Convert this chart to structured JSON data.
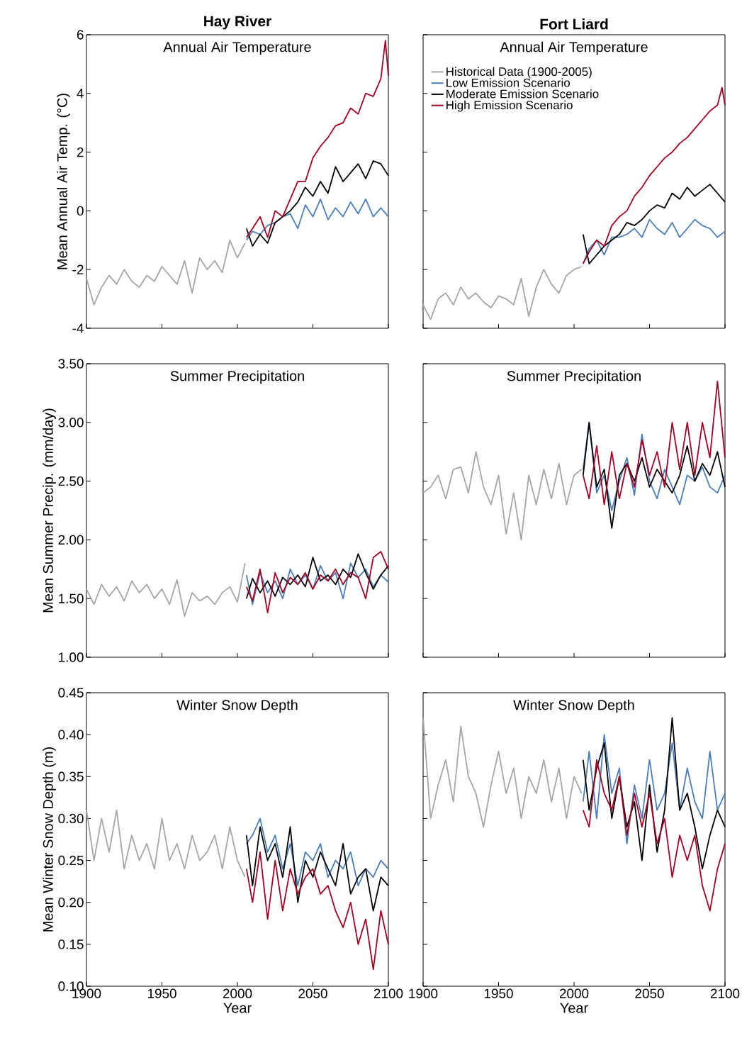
{
  "chart_data": [
    {
      "type": "line",
      "title": "Hay River",
      "subtitle": "Annual Air Temperature",
      "ylabel": "Mean Annual Air Temp. (°C)",
      "xlim": [
        1900,
        2100
      ],
      "xticks": [
        1900,
        1950,
        2000,
        2050,
        2100
      ],
      "ylim": [
        -4,
        6
      ],
      "yticks": [
        -4,
        -2,
        0,
        2,
        4,
        6
      ],
      "tick_labels": "y",
      "series": [
        {
          "color": "#a6a6a6",
          "x": [
            1900,
            1905,
            1910,
            1915,
            1920,
            1925,
            1930,
            1935,
            1940,
            1945,
            1950,
            1955,
            1960,
            1965,
            1970,
            1975,
            1980,
            1985,
            1990,
            1995,
            2000,
            2005
          ],
          "values": [
            -2.3,
            -3.2,
            -2.6,
            -2.2,
            -2.5,
            -2.0,
            -2.4,
            -2.6,
            -2.2,
            -2.4,
            -1.9,
            -2.2,
            -2.5,
            -1.7,
            -2.8,
            -1.6,
            -2.0,
            -1.7,
            -2.1,
            -1.0,
            -1.6,
            -1.1
          ]
        },
        {
          "color": "#4a7ebb",
          "x": [
            2006,
            2010,
            2015,
            2020,
            2025,
            2030,
            2035,
            2040,
            2045,
            2050,
            2055,
            2060,
            2065,
            2070,
            2075,
            2080,
            2085,
            2090,
            2095,
            2100
          ],
          "values": [
            -1.0,
            -0.7,
            -0.8,
            -0.5,
            -0.4,
            -0.2,
            -0.1,
            -0.6,
            0.2,
            -0.2,
            0.4,
            -0.3,
            0.1,
            -0.2,
            0.3,
            -0.1,
            0.4,
            -0.2,
            0.1,
            -0.2
          ]
        },
        {
          "color": "#000000",
          "x": [
            2006,
            2010,
            2015,
            2020,
            2025,
            2030,
            2035,
            2040,
            2045,
            2050,
            2055,
            2060,
            2065,
            2070,
            2075,
            2080,
            2085,
            2090,
            2095,
            2100
          ],
          "values": [
            -0.6,
            -1.2,
            -0.8,
            -1.1,
            -0.4,
            -0.2,
            0.0,
            0.3,
            0.8,
            0.5,
            1.0,
            0.6,
            1.5,
            1.0,
            1.3,
            1.6,
            1.1,
            1.7,
            1.6,
            1.2
          ]
        },
        {
          "color": "#a50021",
          "x": [
            2006,
            2010,
            2015,
            2020,
            2025,
            2030,
            2035,
            2040,
            2045,
            2050,
            2055,
            2060,
            2065,
            2070,
            2075,
            2080,
            2085,
            2090,
            2095,
            2098,
            2100
          ],
          "values": [
            -0.9,
            -0.6,
            -0.2,
            -0.9,
            0.0,
            -0.2,
            0.4,
            1.0,
            1.0,
            1.8,
            2.2,
            2.5,
            2.9,
            3.0,
            3.5,
            3.3,
            4.0,
            3.9,
            4.5,
            5.8,
            4.6
          ]
        }
      ]
    },
    {
      "type": "line",
      "title": "Fort Liard",
      "subtitle": "Annual Air Temperature",
      "xlim": [
        1900,
        2100
      ],
      "xticks": [
        1900,
        1950,
        2000,
        2050,
        2100
      ],
      "ylim": [
        -4,
        6
      ],
      "yticks": [
        -4,
        -2,
        0,
        2,
        4,
        6
      ],
      "tick_labels": false,
      "legend": "top left",
      "series": [
        {
          "name": "Historical Data (1900-2005)",
          "color": "#a6a6a6",
          "x": [
            1900,
            1905,
            1910,
            1915,
            1920,
            1925,
            1930,
            1935,
            1940,
            1945,
            1950,
            1955,
            1960,
            1965,
            1970,
            1975,
            1980,
            1985,
            1990,
            1995,
            2000,
            2005
          ],
          "values": [
            -3.2,
            -3.7,
            -3.0,
            -2.8,
            -3.2,
            -2.6,
            -3.0,
            -2.8,
            -3.1,
            -3.3,
            -2.9,
            -3.0,
            -3.2,
            -2.3,
            -3.6,
            -2.6,
            -2.0,
            -2.5,
            -2.8,
            -2.2,
            -2.0,
            -1.9
          ]
        },
        {
          "name": "Low Emission Scenario",
          "color": "#4a7ebb",
          "x": [
            2006,
            2010,
            2015,
            2020,
            2025,
            2030,
            2035,
            2040,
            2045,
            2050,
            2055,
            2060,
            2065,
            2070,
            2075,
            2080,
            2085,
            2090,
            2095,
            2100
          ],
          "values": [
            -1.8,
            -1.3,
            -1.0,
            -1.5,
            -0.9,
            -0.9,
            -0.8,
            -0.6,
            -0.9,
            -0.3,
            -0.6,
            -0.8,
            -0.4,
            -0.9,
            -0.6,
            -0.3,
            -0.5,
            -0.6,
            -0.9,
            -0.7
          ]
        },
        {
          "name": "Moderate Emission Scenario",
          "color": "#000000",
          "x": [
            2006,
            2010,
            2015,
            2020,
            2025,
            2030,
            2035,
            2040,
            2045,
            2050,
            2055,
            2060,
            2065,
            2070,
            2075,
            2080,
            2085,
            2090,
            2095,
            2100
          ],
          "values": [
            -0.8,
            -1.8,
            -1.5,
            -1.2,
            -1.0,
            -0.8,
            -0.4,
            -0.5,
            -0.3,
            0.0,
            0.2,
            0.1,
            0.6,
            0.4,
            0.8,
            0.5,
            0.7,
            0.9,
            0.6,
            0.3
          ]
        },
        {
          "name": "High Emission Scenario",
          "color": "#a50021",
          "x": [
            2006,
            2010,
            2015,
            2020,
            2025,
            2030,
            2035,
            2040,
            2045,
            2050,
            2055,
            2060,
            2065,
            2070,
            2075,
            2080,
            2085,
            2090,
            2095,
            2098,
            2100
          ],
          "values": [
            -1.8,
            -1.4,
            -1.0,
            -1.2,
            -0.5,
            -0.2,
            0.0,
            0.5,
            0.8,
            1.2,
            1.5,
            1.8,
            2.0,
            2.3,
            2.5,
            2.8,
            3.1,
            3.4,
            3.6,
            4.2,
            3.6
          ]
        }
      ]
    },
    {
      "type": "line",
      "subtitle": "Summer Precipitation",
      "ylabel": "Mean Summer Precip. (mm/day)",
      "xlim": [
        1900,
        2100
      ],
      "xticks": [
        1900,
        1950,
        2000,
        2050,
        2100
      ],
      "ylim": [
        1,
        3.5
      ],
      "yticks": [
        {
          "value": 1,
          "label": "1.00"
        },
        {
          "value": 1.5,
          "label": "1.50"
        },
        {
          "value": 2,
          "label": "2.00"
        },
        {
          "value": 2.5,
          "label": "2.50"
        },
        {
          "value": 3,
          "label": "3.00"
        },
        {
          "value": 3.5,
          "label": "3.50"
        }
      ],
      "tick_labels": "y",
      "series": [
        {
          "color": "#a6a6a6",
          "x": [
            1900,
            1905,
            1910,
            1915,
            1920,
            1925,
            1930,
            1935,
            1940,
            1945,
            1950,
            1955,
            1960,
            1965,
            1970,
            1975,
            1980,
            1985,
            1990,
            1995,
            2000,
            2005
          ],
          "values": [
            1.58,
            1.45,
            1.62,
            1.52,
            1.6,
            1.48,
            1.65,
            1.55,
            1.62,
            1.5,
            1.58,
            1.45,
            1.66,
            1.35,
            1.55,
            1.48,
            1.52,
            1.45,
            1.55,
            1.6,
            1.47,
            1.8
          ]
        },
        {
          "color": "#4a7ebb",
          "x": [
            2006,
            2010,
            2015,
            2020,
            2025,
            2030,
            2035,
            2040,
            2045,
            2050,
            2055,
            2060,
            2065,
            2070,
            2075,
            2080,
            2085,
            2090,
            2095,
            2100
          ],
          "values": [
            1.7,
            1.45,
            1.72,
            1.55,
            1.65,
            1.5,
            1.75,
            1.62,
            1.7,
            1.58,
            1.78,
            1.65,
            1.72,
            1.5,
            1.8,
            1.68,
            1.75,
            1.6,
            1.7,
            1.64
          ]
        },
        {
          "color": "#000000",
          "x": [
            2006,
            2010,
            2015,
            2020,
            2025,
            2030,
            2035,
            2040,
            2045,
            2050,
            2055,
            2060,
            2065,
            2070,
            2075,
            2080,
            2085,
            2090,
            2095,
            2100
          ],
          "values": [
            1.5,
            1.67,
            1.55,
            1.65,
            1.52,
            1.68,
            1.62,
            1.7,
            1.6,
            1.85,
            1.65,
            1.7,
            1.62,
            1.75,
            1.68,
            1.88,
            1.72,
            1.58,
            1.7,
            1.78
          ]
        },
        {
          "color": "#a50021",
          "x": [
            2006,
            2010,
            2015,
            2020,
            2025,
            2030,
            2035,
            2040,
            2045,
            2050,
            2055,
            2060,
            2065,
            2070,
            2075,
            2080,
            2085,
            2090,
            2095,
            2100
          ],
          "values": [
            1.6,
            1.48,
            1.75,
            1.38,
            1.72,
            1.55,
            1.68,
            1.62,
            1.72,
            1.58,
            1.7,
            1.65,
            1.75,
            1.62,
            1.72,
            1.68,
            1.5,
            1.85,
            1.9,
            1.75
          ]
        }
      ]
    },
    {
      "type": "line",
      "subtitle": "Summer Precipitation",
      "xlim": [
        1900,
        2100
      ],
      "xticks": [
        1900,
        1950,
        2000,
        2050,
        2100
      ],
      "ylim": [
        1,
        3.5
      ],
      "yticks": [
        1,
        1.5,
        2,
        2.5,
        3,
        3.5
      ],
      "tick_labels": false,
      "series": [
        {
          "color": "#a6a6a6",
          "x": [
            1900,
            1905,
            1910,
            1915,
            1920,
            1925,
            1930,
            1935,
            1940,
            1945,
            1950,
            1955,
            1960,
            1965,
            1970,
            1975,
            1980,
            1985,
            1990,
            1995,
            2000,
            2005
          ],
          "values": [
            2.4,
            2.45,
            2.55,
            2.35,
            2.6,
            2.62,
            2.4,
            2.75,
            2.45,
            2.3,
            2.55,
            2.05,
            2.4,
            2.0,
            2.55,
            2.3,
            2.6,
            2.35,
            2.65,
            2.3,
            2.55,
            2.6
          ]
        },
        {
          "color": "#4a7ebb",
          "x": [
            2006,
            2010,
            2015,
            2020,
            2025,
            2030,
            2035,
            2040,
            2045,
            2050,
            2055,
            2060,
            2065,
            2070,
            2075,
            2080,
            2085,
            2090,
            2095,
            2100
          ],
          "values": [
            2.6,
            3.0,
            2.4,
            2.55,
            2.25,
            2.5,
            2.7,
            2.38,
            2.9,
            2.5,
            2.35,
            2.6,
            2.45,
            2.3,
            2.55,
            2.5,
            2.62,
            2.45,
            2.4,
            2.55
          ]
        },
        {
          "color": "#000000",
          "x": [
            2006,
            2010,
            2015,
            2020,
            2025,
            2030,
            2035,
            2040,
            2045,
            2050,
            2055,
            2060,
            2065,
            2070,
            2075,
            2080,
            2085,
            2090,
            2095,
            2100
          ],
          "values": [
            2.55,
            3.0,
            2.45,
            2.6,
            2.1,
            2.55,
            2.65,
            2.5,
            2.7,
            2.45,
            2.6,
            2.5,
            2.4,
            2.55,
            2.8,
            2.5,
            2.65,
            2.55,
            2.75,
            2.45
          ]
        },
        {
          "color": "#a50021",
          "x": [
            2006,
            2010,
            2015,
            2020,
            2025,
            2030,
            2035,
            2040,
            2045,
            2050,
            2055,
            2060,
            2065,
            2070,
            2075,
            2080,
            2085,
            2090,
            2095,
            2100
          ],
          "values": [
            2.55,
            2.35,
            2.8,
            2.3,
            2.75,
            2.35,
            2.65,
            2.45,
            2.85,
            2.55,
            2.75,
            2.45,
            3.0,
            2.6,
            3.0,
            2.55,
            3.0,
            2.7,
            3.35,
            2.7
          ]
        }
      ]
    },
    {
      "type": "line",
      "subtitle": "Winter Snow Depth",
      "xlabel": "Year",
      "ylabel": "Mean Winter Snow Depth (m)",
      "xlim": [
        1900,
        2100
      ],
      "xticks": [
        1900,
        1950,
        2000,
        2050,
        2100
      ],
      "ylim": [
        0.1,
        0.45
      ],
      "yticks": [
        {
          "value": 0.1,
          "label": "0.10"
        },
        {
          "value": 0.15,
          "label": "0.15"
        },
        {
          "value": 0.2,
          "label": "0.20"
        },
        {
          "value": 0.25,
          "label": "0.25"
        },
        {
          "value": 0.3,
          "label": "0.30"
        },
        {
          "value": 0.35,
          "label": "0.35"
        },
        {
          "value": 0.4,
          "label": "0.40"
        },
        {
          "value": 0.45,
          "label": "0.45"
        }
      ],
      "series": [
        {
          "color": "#a6a6a6",
          "x": [
            1900,
            1905,
            1910,
            1915,
            1920,
            1925,
            1930,
            1935,
            1940,
            1945,
            1950,
            1955,
            1960,
            1965,
            1970,
            1975,
            1980,
            1985,
            1990,
            1995,
            2000,
            2005
          ],
          "values": [
            0.31,
            0.25,
            0.3,
            0.26,
            0.31,
            0.24,
            0.28,
            0.25,
            0.27,
            0.24,
            0.3,
            0.25,
            0.27,
            0.24,
            0.28,
            0.25,
            0.26,
            0.28,
            0.24,
            0.29,
            0.25,
            0.23
          ]
        },
        {
          "color": "#4a7ebb",
          "x": [
            2006,
            2010,
            2015,
            2020,
            2025,
            2030,
            2035,
            2040,
            2045,
            2050,
            2055,
            2060,
            2065,
            2070,
            2075,
            2080,
            2085,
            2090,
            2095,
            2100
          ],
          "values": [
            0.27,
            0.28,
            0.3,
            0.26,
            0.28,
            0.24,
            0.27,
            0.22,
            0.26,
            0.25,
            0.27,
            0.23,
            0.25,
            0.24,
            0.26,
            0.22,
            0.24,
            0.23,
            0.25,
            0.24
          ]
        },
        {
          "color": "#000000",
          "x": [
            2006,
            2010,
            2015,
            2020,
            2025,
            2030,
            2035,
            2040,
            2045,
            2050,
            2055,
            2060,
            2065,
            2070,
            2075,
            2080,
            2085,
            2090,
            2095,
            2100
          ],
          "values": [
            0.28,
            0.22,
            0.29,
            0.25,
            0.27,
            0.23,
            0.29,
            0.2,
            0.25,
            0.23,
            0.26,
            0.24,
            0.22,
            0.27,
            0.21,
            0.23,
            0.24,
            0.19,
            0.23,
            0.22
          ]
        },
        {
          "color": "#a50021",
          "x": [
            2006,
            2010,
            2015,
            2020,
            2025,
            2030,
            2035,
            2040,
            2045,
            2050,
            2055,
            2060,
            2065,
            2070,
            2075,
            2080,
            2085,
            2090,
            2095,
            2100
          ],
          "values": [
            0.24,
            0.2,
            0.26,
            0.18,
            0.25,
            0.19,
            0.24,
            0.21,
            0.23,
            0.24,
            0.21,
            0.22,
            0.19,
            0.17,
            0.2,
            0.15,
            0.18,
            0.12,
            0.19,
            0.15
          ]
        }
      ]
    },
    {
      "type": "line",
      "subtitle": "Winter Snow Depth",
      "xlabel": "Year",
      "xlim": [
        1900,
        2100
      ],
      "xticks": [
        1900,
        1950,
        2000,
        2050,
        2100
      ],
      "ylim": [
        0.1,
        0.45
      ],
      "yticks": [
        0.1,
        0.15,
        0.2,
        0.25,
        0.3,
        0.35,
        0.4,
        0.45
      ],
      "tick_labels": "x",
      "series": [
        {
          "color": "#a6a6a6",
          "x": [
            1900,
            1905,
            1910,
            1915,
            1920,
            1925,
            1930,
            1935,
            1940,
            1945,
            1950,
            1955,
            1960,
            1965,
            1970,
            1975,
            1980,
            1985,
            1990,
            1995,
            2000,
            2005
          ],
          "values": [
            0.42,
            0.3,
            0.34,
            0.37,
            0.32,
            0.41,
            0.35,
            0.33,
            0.29,
            0.34,
            0.38,
            0.33,
            0.36,
            0.3,
            0.35,
            0.33,
            0.37,
            0.32,
            0.36,
            0.3,
            0.35,
            0.33
          ]
        },
        {
          "color": "#4a7ebb",
          "x": [
            2006,
            2010,
            2015,
            2020,
            2025,
            2030,
            2035,
            2040,
            2045,
            2050,
            2055,
            2060,
            2065,
            2070,
            2075,
            2080,
            2085,
            2090,
            2095,
            2100
          ],
          "values": [
            0.32,
            0.38,
            0.3,
            0.4,
            0.33,
            0.36,
            0.27,
            0.34,
            0.3,
            0.37,
            0.31,
            0.33,
            0.39,
            0.31,
            0.36,
            0.32,
            0.3,
            0.38,
            0.31,
            0.33
          ]
        },
        {
          "color": "#000000",
          "x": [
            2006,
            2010,
            2015,
            2020,
            2025,
            2030,
            2035,
            2040,
            2045,
            2050,
            2055,
            2060,
            2065,
            2070,
            2075,
            2080,
            2085,
            2090,
            2095,
            2100
          ],
          "values": [
            0.37,
            0.31,
            0.36,
            0.39,
            0.3,
            0.35,
            0.29,
            0.32,
            0.25,
            0.34,
            0.26,
            0.31,
            0.42,
            0.31,
            0.33,
            0.29,
            0.24,
            0.28,
            0.31,
            0.29
          ]
        },
        {
          "color": "#a50021",
          "x": [
            2006,
            2010,
            2015,
            2020,
            2025,
            2030,
            2035,
            2040,
            2045,
            2050,
            2055,
            2060,
            2065,
            2070,
            2075,
            2080,
            2085,
            2090,
            2095,
            2100
          ],
          "values": [
            0.31,
            0.29,
            0.37,
            0.33,
            0.31,
            0.35,
            0.28,
            0.33,
            0.29,
            0.33,
            0.27,
            0.3,
            0.23,
            0.28,
            0.25,
            0.28,
            0.22,
            0.19,
            0.24,
            0.27
          ]
        }
      ]
    }
  ]
}
